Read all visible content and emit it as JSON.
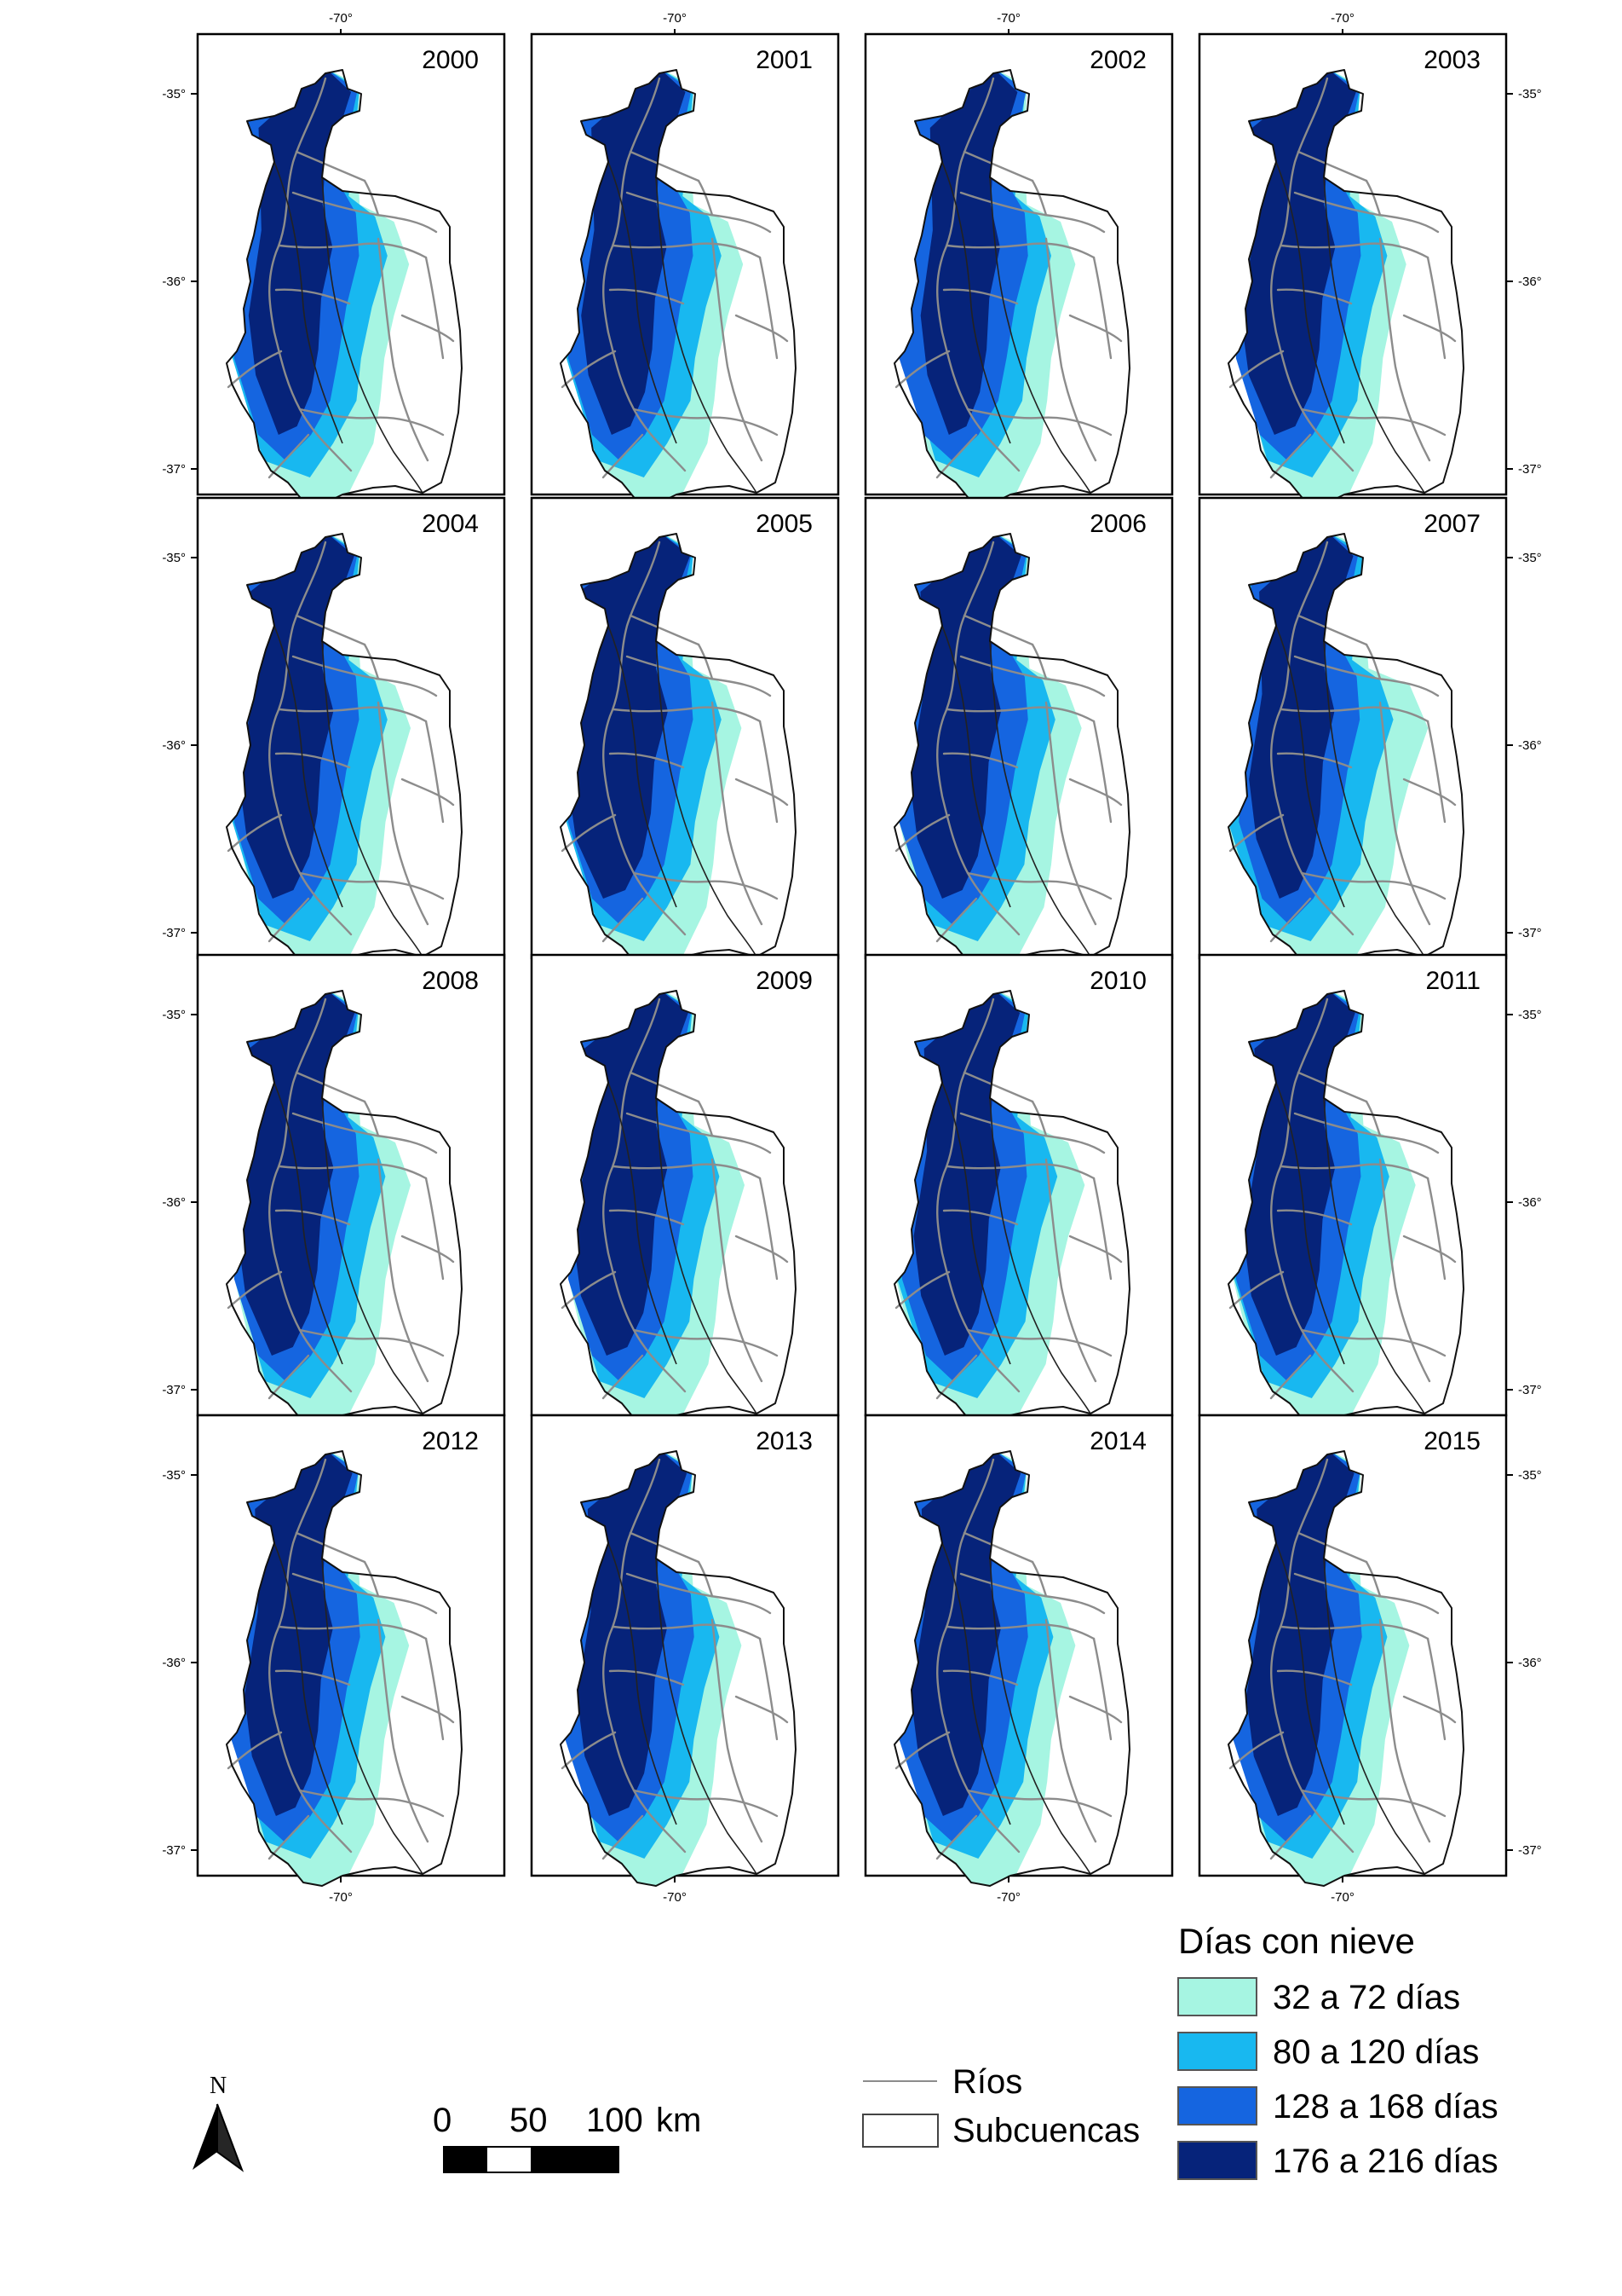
{
  "figure": {
    "panels": [
      {
        "year": "2000",
        "classes": {
          "c1": 0.35,
          "c2": 0.7,
          "c3": 0.8,
          "c4": 0.45
        }
      },
      {
        "year": "2001",
        "classes": {
          "c1": 0.35,
          "c2": 0.7,
          "c3": 0.8,
          "c4": 0.5
        }
      },
      {
        "year": "2002",
        "classes": {
          "c1": 0.3,
          "c2": 0.5,
          "c3": 0.9,
          "c4": 0.3
        }
      },
      {
        "year": "2003",
        "classes": {
          "c1": 0.2,
          "c2": 0.6,
          "c3": 0.8,
          "c4": 0.8
        }
      },
      {
        "year": "2004",
        "classes": {
          "c1": 0.4,
          "c2": 0.7,
          "c3": 0.8,
          "c4": 0.8
        }
      },
      {
        "year": "2005",
        "classes": {
          "c1": 0.3,
          "c2": 0.7,
          "c3": 0.8,
          "c4": 1.0
        }
      },
      {
        "year": "2006",
        "classes": {
          "c1": 0.5,
          "c2": 0.7,
          "c3": 0.9,
          "c4": 0.7
        }
      },
      {
        "year": "2007",
        "classes": {
          "c1": 0.9,
          "c2": 0.9,
          "c3": 0.7,
          "c4": 0.5
        }
      },
      {
        "year": "2008",
        "classes": {
          "c1": 0.4,
          "c2": 0.6,
          "c3": 0.8,
          "c4": 0.85
        }
      },
      {
        "year": "2009",
        "classes": {
          "c1": 0.4,
          "c2": 0.6,
          "c3": 0.8,
          "c4": 0.8
        }
      },
      {
        "year": "2010",
        "classes": {
          "c1": 0.6,
          "c2": 0.8,
          "c3": 0.8,
          "c4": 0.55
        }
      },
      {
        "year": "2011",
        "classes": {
          "c1": 0.5,
          "c2": 0.7,
          "c3": 0.8,
          "c4": 0.7
        }
      },
      {
        "year": "2012",
        "classes": {
          "c1": 0.35,
          "c2": 0.6,
          "c3": 0.9,
          "c4": 0.6
        }
      },
      {
        "year": "2013",
        "classes": {
          "c1": 0.3,
          "c2": 0.6,
          "c3": 0.9,
          "c4": 0.65
        }
      },
      {
        "year": "2014",
        "classes": {
          "c1": 0.3,
          "c2": 0.6,
          "c3": 0.9,
          "c4": 0.65
        }
      },
      {
        "year": "2015",
        "classes": {
          "c1": 0.3,
          "c2": 0.6,
          "c3": 0.9,
          "c4": 0.6
        }
      }
    ],
    "lat_ticks": [
      "-35°",
      "-36°",
      "-37°"
    ],
    "lon_tick": "-70°"
  },
  "legend": {
    "title": "Días con nieve",
    "classes": [
      {
        "key": "c1",
        "label": "32 a 72 días",
        "color": "#a6f5e2"
      },
      {
        "key": "c2",
        "label": "80 a 120 días",
        "color": "#18b8f0"
      },
      {
        "key": "c3",
        "label": "128 a 168 días",
        "color": "#1565e0"
      },
      {
        "key": "c4",
        "label": "176 a 216 días",
        "color": "#06237a"
      }
    ],
    "rivers_label": "Ríos",
    "subbasins_label": "Subcuencas",
    "river_color": "#8c8c8c"
  },
  "scale_bar": {
    "labels": [
      "0",
      "50",
      "100"
    ],
    "unit": "km"
  },
  "north_arrow": {
    "label": "N"
  }
}
